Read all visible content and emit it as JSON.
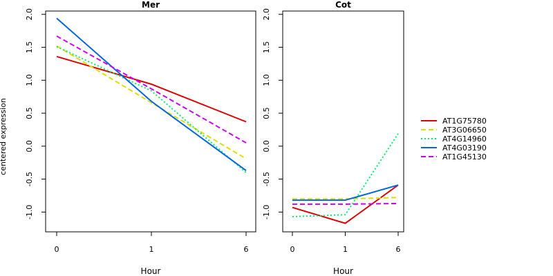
{
  "chart_data": {
    "type": "line",
    "ylabel": "centered expression",
    "x": [
      "0",
      "1",
      "6"
    ],
    "ylim": [
      -1.3,
      2.05
    ],
    "yticks": [
      -1.0,
      -0.5,
      0.0,
      0.5,
      1.0,
      1.5,
      2.0
    ],
    "grid": false,
    "legend_position": "right",
    "panels": [
      {
        "title": "Mer",
        "xlabel": "Hour",
        "series": [
          {
            "name": "AT1G75780",
            "values": [
              1.36,
              0.94,
              0.37
            ]
          },
          {
            "name": "AT3G06650",
            "values": [
              1.52,
              0.66,
              -0.19
            ]
          },
          {
            "name": "AT4G14960",
            "values": [
              1.51,
              0.84,
              -0.4
            ]
          },
          {
            "name": "AT4G03190",
            "values": [
              1.94,
              0.68,
              -0.37
            ]
          },
          {
            "name": "AT1G45130",
            "values": [
              1.67,
              0.87,
              0.05
            ]
          }
        ]
      },
      {
        "title": "Cot",
        "xlabel": "Hour",
        "series": [
          {
            "name": "AT1G75780",
            "values": [
              -0.93,
              -1.17,
              -0.59
            ]
          },
          {
            "name": "AT3G06650",
            "values": [
              -0.8,
              -0.8,
              -0.78
            ]
          },
          {
            "name": "AT4G14960",
            "values": [
              -1.07,
              -1.04,
              0.19
            ]
          },
          {
            "name": "AT4G03190",
            "values": [
              -0.82,
              -0.82,
              -0.59
            ]
          },
          {
            "name": "AT1G45130",
            "values": [
              -0.88,
              -0.88,
              -0.87
            ]
          }
        ]
      }
    ],
    "series_styles": [
      {
        "name": "AT1G75780",
        "color": "#dd0000",
        "dash": "solid"
      },
      {
        "name": "AT3G06650",
        "color": "#dddd00",
        "dash": "dashed"
      },
      {
        "name": "AT4G14960",
        "color": "#00ee66",
        "dash": "dotted"
      },
      {
        "name": "AT4G03190",
        "color": "#0066dd",
        "dash": "solid"
      },
      {
        "name": "AT1G45130",
        "color": "#cc00ee",
        "dash": "dashed"
      }
    ]
  }
}
